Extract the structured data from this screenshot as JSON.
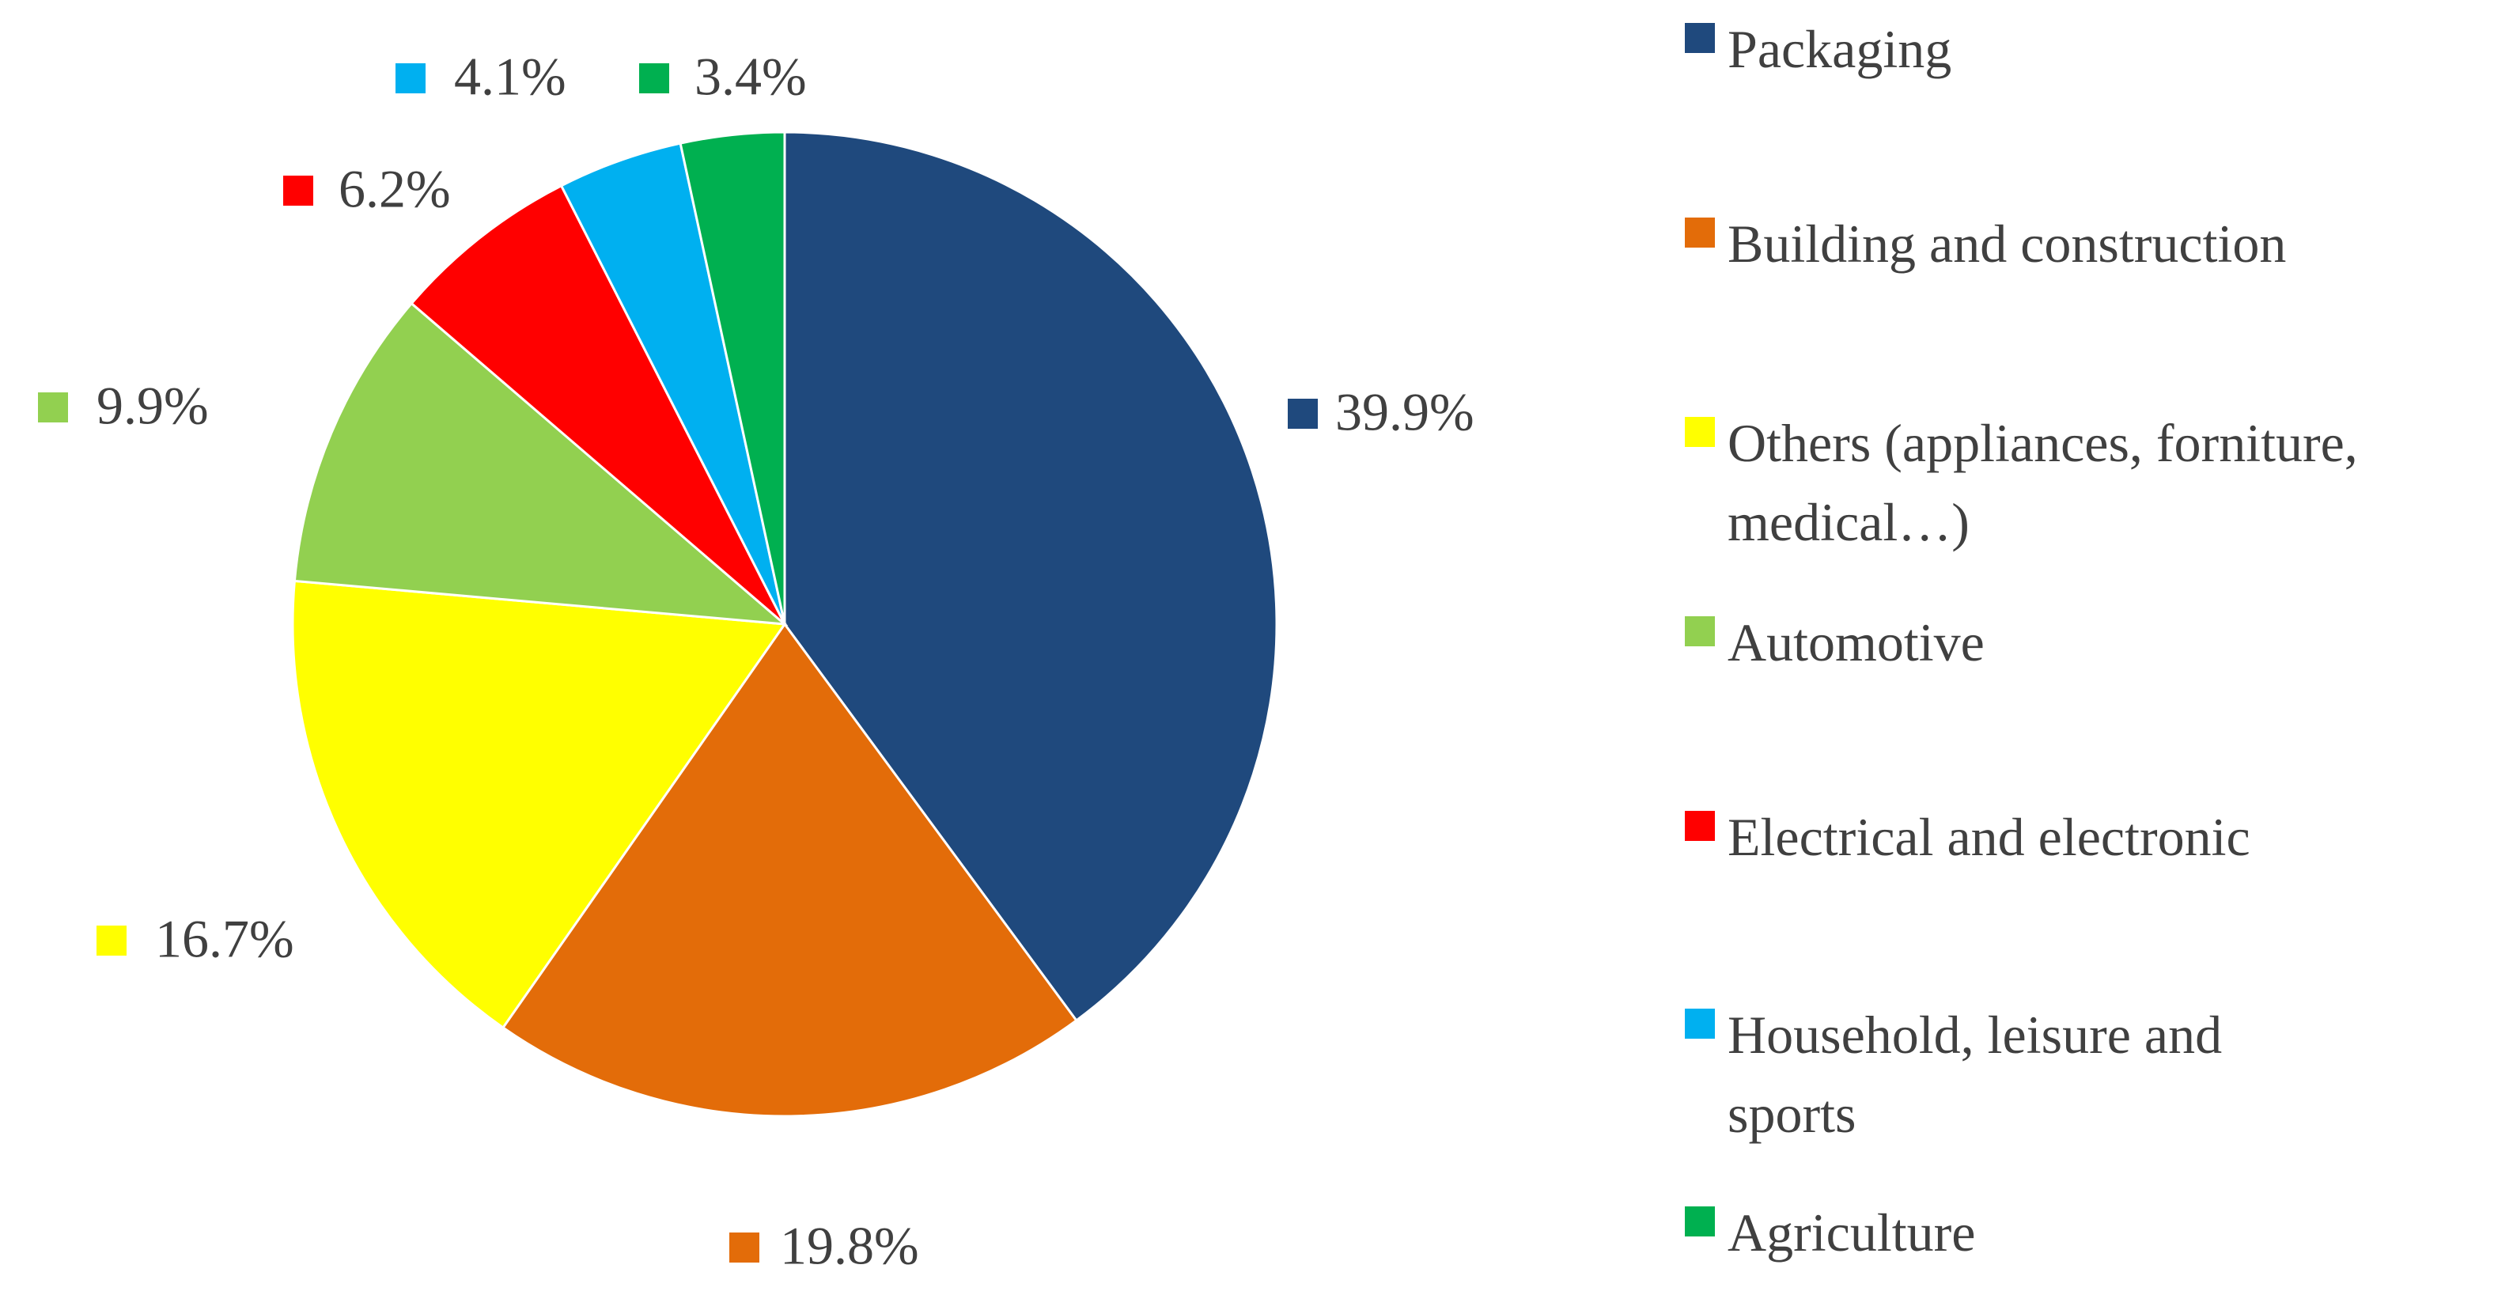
{
  "chart_data": {
    "type": "pie",
    "title": "",
    "slices": [
      {
        "label": "Packaging",
        "value": 39.9,
        "display": "39.9%",
        "color": "#1F497D"
      },
      {
        "label": "Building and construction",
        "value": 19.8,
        "display": "19.8%",
        "color": "#E36C09"
      },
      {
        "label": "Others (appliances, forniture, medical…)",
        "value": 16.7,
        "display": "16.7%",
        "color": "#FFFF00"
      },
      {
        "label": "Automotive",
        "value": 9.9,
        "display": "9.9%",
        "color": "#92D050"
      },
      {
        "label": "Electrical and electronic",
        "value": 6.2,
        "display": "6.2%",
        "color": "#FF0000"
      },
      {
        "label": "Household, leisure and sports",
        "value": 4.1,
        "display": "4.1%",
        "color": "#00B0F0"
      },
      {
        "label": "Agriculture",
        "value": 3.4,
        "display": "3.4%",
        "color": "#00B050"
      }
    ],
    "start_angle": "12 o'clock",
    "direction": "clockwise",
    "legend_position": "right"
  },
  "legend": {
    "items": [
      {
        "label": "Packaging",
        "color": "#1F497D"
      },
      {
        "label": "Building and construction",
        "color": "#E36C09"
      },
      {
        "label": "Others (appliances, forniture,\nmedical…)",
        "color": "#FFFF00"
      },
      {
        "label": "Automotive",
        "color": "#92D050"
      },
      {
        "label": "Electrical and electronic",
        "color": "#FF0000"
      },
      {
        "label": "Household, leisure and\nsports",
        "color": "#00B0F0"
      },
      {
        "label": "Agriculture",
        "color": "#00B050"
      }
    ]
  }
}
